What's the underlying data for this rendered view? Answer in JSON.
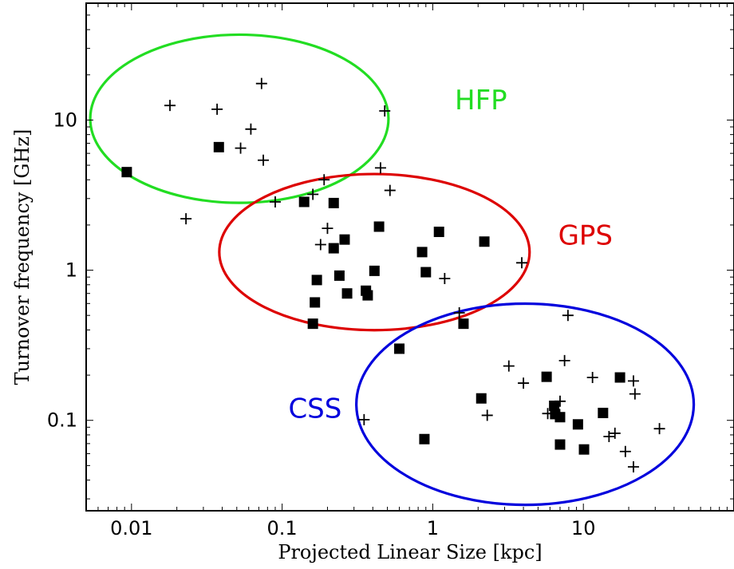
{
  "chart_data": {
    "type": "scatter",
    "xlabel": "Projected Linear Size  [kpc]",
    "ylabel": "Turnover frequency  [GHz]",
    "x_scale": "log",
    "y_scale": "log",
    "xlim": [
      0.005,
      100
    ],
    "ylim": [
      0.025,
      60
    ],
    "grid": false,
    "legend": "none",
    "x_ticks": [
      {
        "value": 0.01,
        "label": "0.01"
      },
      {
        "value": 0.1,
        "label": "0.1"
      },
      {
        "value": 1,
        "label": "1"
      },
      {
        "value": 10,
        "label": "10"
      }
    ],
    "y_ticks": [
      {
        "value": 0.1,
        "label": "0.1"
      },
      {
        "value": 1,
        "label": "1"
      },
      {
        "value": 10,
        "label": "10"
      }
    ],
    "regions": [
      {
        "label": "HFP",
        "color": "#22dd22",
        "cx": 0.052,
        "cy": 10.2,
        "rx_dex": 0.99,
        "ry_dex": 0.56,
        "label_x": 1.4,
        "label_y": 11.8
      },
      {
        "label": "GPS",
        "color": "#dd0000",
        "cx": 0.41,
        "cy": 1.32,
        "rx_dex": 1.03,
        "ry_dex": 0.52,
        "label_x": 6.8,
        "label_y": 1.48
      },
      {
        "label": "CSS",
        "color": "#0000dd",
        "cx": 4.1,
        "cy": 0.128,
        "rx_dex": 1.12,
        "ry_dex": 0.67,
        "label_x": 0.11,
        "label_y": 0.104
      }
    ],
    "series": [
      {
        "marker": "square",
        "points": [
          [
            0.0093,
            4.5
          ],
          [
            0.038,
            6.6
          ],
          [
            0.14,
            2.85
          ],
          [
            0.22,
            2.8
          ],
          [
            0.22,
            1.4
          ],
          [
            0.26,
            1.6
          ],
          [
            0.44,
            1.95
          ],
          [
            0.17,
            0.86
          ],
          [
            0.24,
            0.92
          ],
          [
            0.41,
            0.99
          ],
          [
            0.27,
            0.7
          ],
          [
            0.36,
            0.73
          ],
          [
            0.37,
            0.68
          ],
          [
            0.165,
            0.61
          ],
          [
            0.16,
            0.44
          ],
          [
            0.85,
            1.32
          ],
          [
            1.1,
            1.8
          ],
          [
            0.9,
            0.97
          ],
          [
            2.2,
            1.55
          ],
          [
            1.6,
            0.44
          ],
          [
            0.6,
            0.3
          ],
          [
            0.88,
            0.075
          ],
          [
            2.1,
            0.14
          ],
          [
            5.7,
            0.195
          ],
          [
            6.4,
            0.125
          ],
          [
            6.5,
            0.11
          ],
          [
            7.0,
            0.105
          ],
          [
            7.0,
            0.069
          ],
          [
            9.2,
            0.094
          ],
          [
            10.1,
            0.064
          ],
          [
            13.5,
            0.112
          ],
          [
            17.5,
            0.193
          ]
        ]
      },
      {
        "marker": "plus",
        "points": [
          [
            0.018,
            12.5
          ],
          [
            0.037,
            11.8
          ],
          [
            0.073,
            17.5
          ],
          [
            0.062,
            8.7
          ],
          [
            0.053,
            6.5
          ],
          [
            0.075,
            5.4
          ],
          [
            0.48,
            11.5
          ],
          [
            0.023,
            2.2
          ],
          [
            0.09,
            2.85
          ],
          [
            0.16,
            3.2
          ],
          [
            0.19,
            4.0
          ],
          [
            0.45,
            4.8
          ],
          [
            0.52,
            3.4
          ],
          [
            0.2,
            1.9
          ],
          [
            0.18,
            1.48
          ],
          [
            1.2,
            0.88
          ],
          [
            3.9,
            1.12
          ],
          [
            1.5,
            0.52
          ],
          [
            0.35,
            0.101
          ],
          [
            2.3,
            0.108
          ],
          [
            3.2,
            0.23
          ],
          [
            4.0,
            0.177
          ],
          [
            7.5,
            0.25
          ],
          [
            7.9,
            0.5
          ],
          [
            11.5,
            0.193
          ],
          [
            21.5,
            0.183
          ],
          [
            22.0,
            0.15
          ],
          [
            7.0,
            0.134
          ],
          [
            5.8,
            0.111
          ],
          [
            14.8,
            0.078
          ],
          [
            16.2,
            0.082
          ],
          [
            19.0,
            0.062
          ],
          [
            21.5,
            0.049
          ],
          [
            32.0,
            0.088
          ]
        ]
      }
    ]
  }
}
